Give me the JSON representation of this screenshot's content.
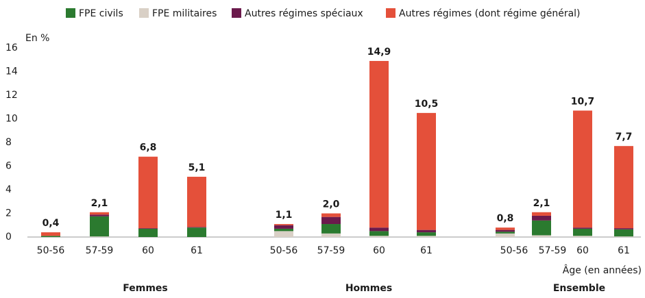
{
  "chart_data": {
    "type": "stacked_bar",
    "y_label": "En %",
    "x_label": "Âge (en années)",
    "categories": [
      "50-56",
      "57-59",
      "60",
      "61",
      "50-56",
      "57-59",
      "60",
      "61",
      "50-56",
      "57-59",
      "60",
      "61"
    ],
    "groups": [
      "Femmes",
      "Hommes",
      "Ensemble"
    ],
    "series": [
      {
        "name": "FPE civils",
        "color": "#2b7a2f",
        "values": [
          0.1,
          1.7,
          0.7,
          0.8,
          0.2,
          0.8,
          0.4,
          0.3,
          0.15,
          1.25,
          0.6,
          0.6
        ]
      },
      {
        "name": "FPE militaires",
        "color": "#d9d0c6",
        "values": [
          0,
          0.05,
          0,
          0,
          0.5,
          0.3,
          0.1,
          0.1,
          0.3,
          0.15,
          0.1,
          0.05
        ]
      },
      {
        "name": "Autres régimes spéciaux",
        "color": "#6b1a4c",
        "values": [
          0,
          0.15,
          0.05,
          0.05,
          0.3,
          0.6,
          0.3,
          0.2,
          0.15,
          0.4,
          0.1,
          0.1
        ]
      },
      {
        "name": "Autres régimes (dont régime général)",
        "color": "#e4503a",
        "values": [
          0.3,
          0.2,
          6.05,
          4.25,
          0.1,
          0.3,
          14.1,
          9.9,
          0.2,
          0.3,
          9.9,
          6.95
        ]
      }
    ],
    "totals": [
      0.4,
      2.1,
      6.8,
      5.1,
      1.1,
      2.0,
      14.9,
      10.5,
      0.8,
      2.1,
      10.7,
      7.7
    ],
    "total_labels": [
      "0,4",
      "2,1",
      "6,8",
      "5,1",
      "1,1",
      "2,0",
      "14,9",
      "10,5",
      "0,8",
      "2,1",
      "10,7",
      "7,7"
    ],
    "ylim": [
      0,
      16
    ],
    "yticks": [
      0,
      2,
      4,
      6,
      8,
      10,
      12,
      14,
      16
    ],
    "grid": false
  }
}
